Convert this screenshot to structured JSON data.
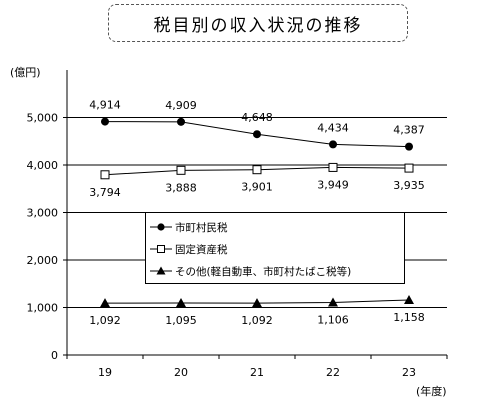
{
  "title": "税目別の収入状況の推移",
  "chart_data": {
    "type": "line",
    "y_unit": "(億円)",
    "x_unit": "(年度)",
    "categories": [
      "19",
      "20",
      "21",
      "22",
      "23"
    ],
    "ylim": [
      0,
      6000
    ],
    "yticks": [
      0,
      1000,
      2000,
      3000,
      4000,
      5000
    ],
    "ytick_labels": [
      "0",
      "1,000",
      "2,000",
      "3,000",
      "4,000",
      "5,000"
    ],
    "grid": true,
    "legend_position": "center",
    "series": [
      {
        "name": "市町村民税",
        "marker": "filled-circle",
        "values": [
          4914,
          4909,
          4648,
          4434,
          4387
        ],
        "labels": [
          "4,914",
          "4,909",
          "4,648",
          "4,434",
          "4,387"
        ]
      },
      {
        "name": "固定資産税",
        "marker": "open-square",
        "values": [
          3794,
          3888,
          3901,
          3949,
          3935
        ],
        "labels": [
          "3,794",
          "3,888",
          "3,901",
          "3,949",
          "3,935"
        ]
      },
      {
        "name": "その他(軽自動車、市町村たばこ税等)",
        "marker": "filled-triangle",
        "values": [
          1092,
          1095,
          1092,
          1106,
          1158
        ],
        "labels": [
          "1,092",
          "1,095",
          "1,092",
          "1,106",
          "1,158"
        ]
      }
    ]
  }
}
